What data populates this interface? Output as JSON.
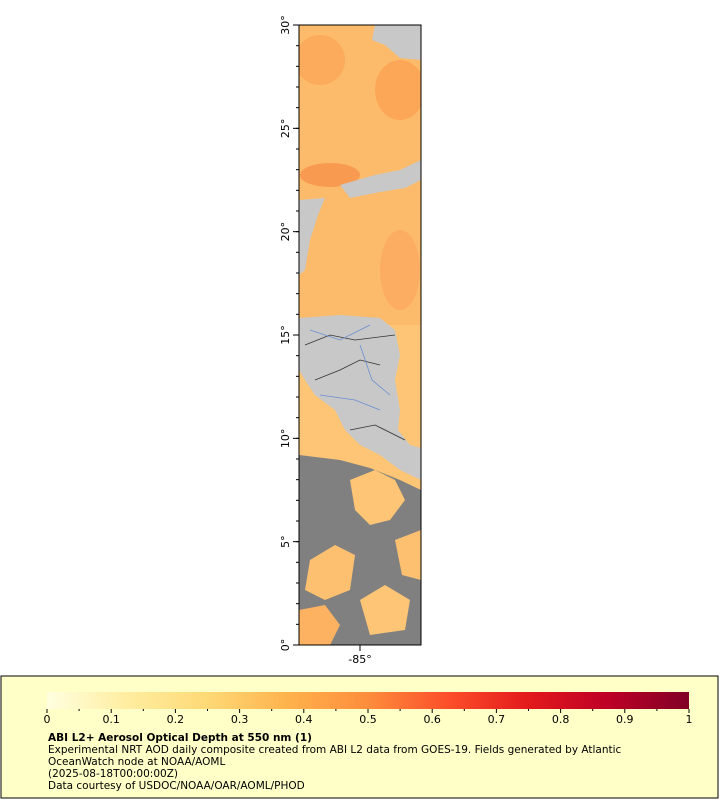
{
  "map": {
    "xlim": [
      -88,
      -82
    ],
    "ylim": [
      0,
      30
    ],
    "yticks": [
      {
        "value": 0,
        "label": "0°"
      },
      {
        "value": 5,
        "label": "5°"
      },
      {
        "value": 10,
        "label": "10°"
      },
      {
        "value": 15,
        "label": "15°"
      },
      {
        "value": 20,
        "label": "20°"
      },
      {
        "value": 25,
        "label": "25°"
      },
      {
        "value": 30,
        "label": "30°"
      }
    ],
    "xticks": [
      {
        "value": -85,
        "label": "-85°"
      }
    ]
  },
  "colorbar": {
    "range": [
      0,
      1
    ],
    "ticks": [
      0,
      0.1,
      0.2,
      0.3,
      0.4,
      0.5,
      0.6,
      0.7,
      0.8,
      0.9,
      1
    ],
    "colors": [
      "#ffffe0",
      "#ffeda0",
      "#fed976",
      "#feb24c",
      "#fd8d3c",
      "#fc4e2a",
      "#e31a1c",
      "#bd0026",
      "#800026"
    ]
  },
  "legend": {
    "title": "ABI L2+ Aerosol Optical Depth at 550 nm (1)",
    "lines": [
      "Experimental NRT AOD daily composite created from ABI L2 data from GOES-19. Fields generated by Atlantic OceanWatch node at NOAA/AOML",
      "(2025-08-18T00:00:00Z)",
      "Data courtesy of USDOC/NOAA/OAR/AOML/PHOD"
    ]
  }
}
